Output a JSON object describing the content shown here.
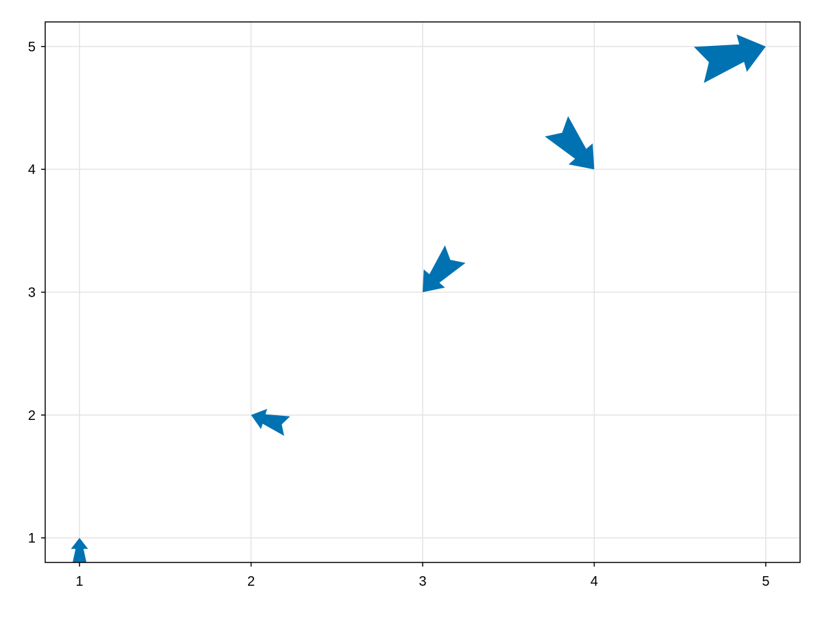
{
  "chart_data": {
    "type": "quiver",
    "title": "",
    "xlabel": "",
    "ylabel": "",
    "xlim": [
      0.8,
      5.2
    ],
    "ylim": [
      0.8,
      5.2
    ],
    "grid": true,
    "xticks": [
      1,
      2,
      3,
      4,
      5
    ],
    "yticks": [
      1,
      2,
      3,
      4,
      5
    ],
    "arrow_color": "#0072b2",
    "grid_color": "#e3e3e3",
    "arrows": [
      {
        "x": 1,
        "y": 1,
        "u": 0.0,
        "v": 0.25
      },
      {
        "x": 2,
        "y": 2,
        "u": -0.21,
        "v": 0.09
      },
      {
        "x": 3,
        "y": 3,
        "u": -0.19,
        "v": -0.31
      },
      {
        "x": 4,
        "y": 4,
        "u": 0.22,
        "v": -0.35
      },
      {
        "x": 5,
        "y": 5,
        "u": 0.39,
        "v": 0.15
      }
    ]
  }
}
